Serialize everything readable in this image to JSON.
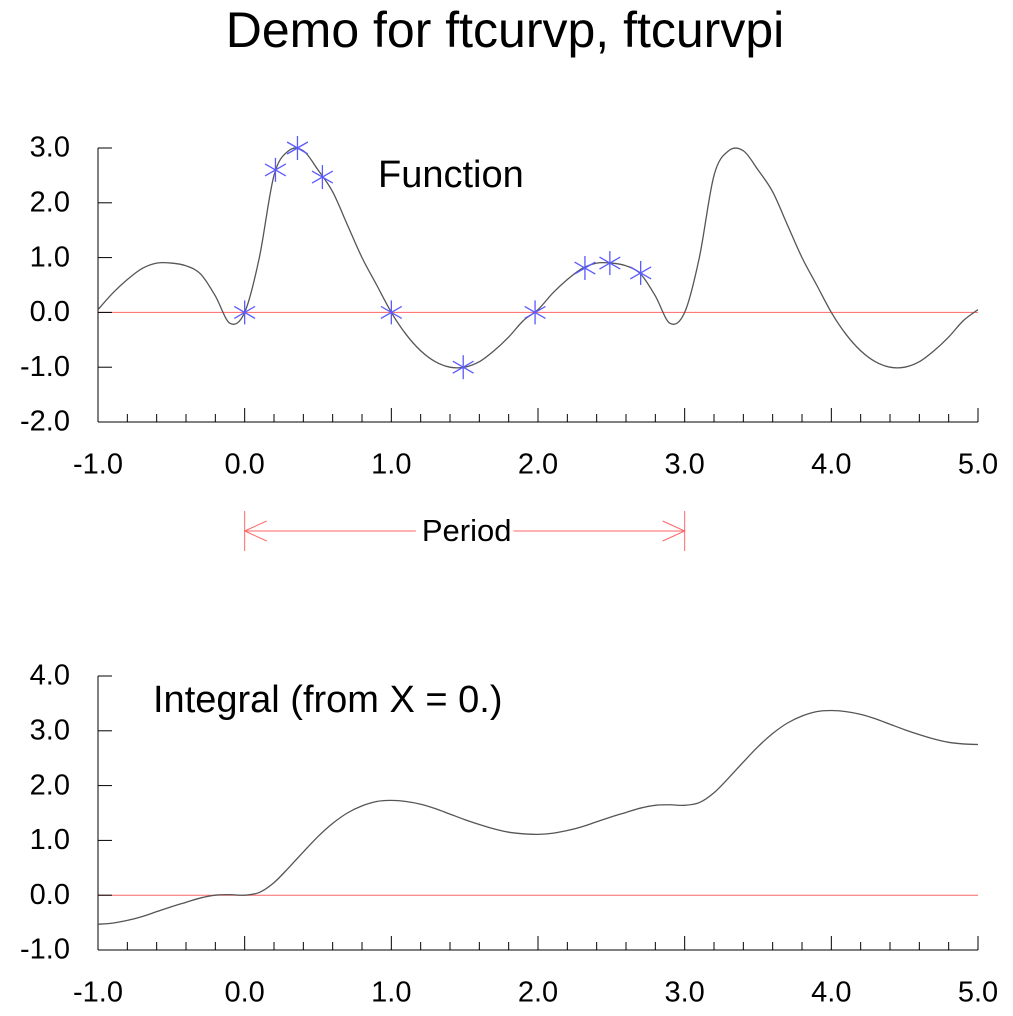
{
  "title": "Demo for ftcurvp, ftcurvpi",
  "chart_data": [
    {
      "type": "line",
      "annotation": "Function",
      "x": [
        -1,
        -0.9,
        -0.8,
        -0.7,
        -0.6,
        -0.5,
        -0.4,
        -0.3,
        -0.2,
        -0.1,
        0,
        0.1,
        0.2,
        0.3,
        0.4,
        0.5,
        0.6,
        0.7,
        0.8,
        0.9,
        1,
        1.1,
        1.2,
        1.3,
        1.4,
        1.5,
        1.6,
        1.7,
        1.8,
        1.9,
        2,
        2.1,
        2.2,
        2.3,
        2.4,
        2.5,
        2.6,
        2.7,
        2.8,
        2.9,
        3,
        3.1,
        3.2,
        3.3,
        3.4,
        3.5,
        3.6,
        3.7,
        3.8,
        3.9,
        4,
        4.1,
        4.2,
        4.3,
        4.4,
        4.5,
        4.6,
        4.7,
        4.8,
        4.9,
        5
      ],
      "series": [
        {
          "color": "#555555",
          "values": [
            0.05,
            0.35,
            0.6,
            0.8,
            0.9,
            0.9,
            0.85,
            0.7,
            0.3,
            -0.2,
            0,
            1.0,
            2.5,
            2.95,
            2.95,
            2.6,
            2.2,
            1.6,
            1.0,
            0.5,
            0,
            -0.4,
            -0.7,
            -0.9,
            -1.0,
            -1.0,
            -0.9,
            -0.7,
            -0.45,
            -0.15,
            0.05,
            0.35,
            0.6,
            0.8,
            0.9,
            0.9,
            0.85,
            0.7,
            0.3,
            -0.2,
            0,
            1.0,
            2.5,
            2.95,
            2.95,
            2.6,
            2.2,
            1.6,
            1.0,
            0.5,
            0,
            -0.4,
            -0.7,
            -0.9,
            -1.0,
            -1.0,
            -0.9,
            -0.7,
            -0.45,
            -0.15,
            0.05
          ]
        }
      ],
      "points": {
        "color": "#5a5aff",
        "marker": "asterisk",
        "x": [
          0,
          0.21,
          0.36,
          0.53,
          1.0,
          1.49,
          1.98,
          2.32,
          2.49,
          2.7
        ],
        "y": [
          0,
          2.6,
          3.0,
          2.47,
          0,
          -1.0,
          0,
          0.81,
          0.9,
          0.72
        ]
      },
      "period_arrow": {
        "label": "Period",
        "from": 0,
        "to": 3,
        "color": "#ff6666"
      },
      "xlim": [
        -1,
        5
      ],
      "ylim": [
        -2,
        3
      ],
      "xticks": [
        {
          "value": -1,
          "label": "-1.0"
        },
        {
          "value": 0,
          "label": "0.0"
        },
        {
          "value": 1,
          "label": "1.0"
        },
        {
          "value": 2,
          "label": "2.0"
        },
        {
          "value": 3,
          "label": "3.0"
        },
        {
          "value": 4,
          "label": "4.0"
        },
        {
          "value": 5,
          "label": "5.0"
        }
      ],
      "xminorticks": [
        -0.8,
        -0.6,
        -0.4,
        -0.2,
        0.2,
        0.4,
        0.6,
        0.8,
        1.2,
        1.4,
        1.6,
        1.8,
        2.2,
        2.4,
        2.6,
        2.8,
        3.2,
        3.4,
        3.6,
        3.8,
        4.2,
        4.4,
        4.6,
        4.8
      ],
      "yticks": [
        {
          "value": -2,
          "label": "-2.0"
        },
        {
          "value": -1,
          "label": "-1.0"
        },
        {
          "value": 0,
          "label": "0.0"
        },
        {
          "value": 1,
          "label": "1.0"
        },
        {
          "value": 2,
          "label": "2.0"
        },
        {
          "value": 3,
          "label": "3.0"
        }
      ],
      "zero_line_color": "#ff6666"
    },
    {
      "type": "line",
      "annotation": "Integral (from X = 0.)",
      "x": [
        -1,
        -0.9,
        -0.8,
        -0.7,
        -0.6,
        -0.5,
        -0.4,
        -0.3,
        -0.2,
        -0.1,
        0,
        0.1,
        0.2,
        0.3,
        0.4,
        0.5,
        0.6,
        0.7,
        0.8,
        0.9,
        1,
        1.1,
        1.2,
        1.3,
        1.4,
        1.5,
        1.6,
        1.7,
        1.8,
        1.9,
        2,
        2.1,
        2.2,
        2.3,
        2.4,
        2.5,
        2.6,
        2.7,
        2.8,
        2.9,
        3,
        3.1,
        3.2,
        3.3,
        3.4,
        3.5,
        3.6,
        3.7,
        3.8,
        3.9,
        4,
        4.1,
        4.2,
        4.3,
        4.4,
        4.5,
        4.6,
        4.7,
        4.8,
        4.9,
        5
      ],
      "series": [
        {
          "color": "#555555",
          "values": [
            -0.53,
            -0.51,
            -0.46,
            -0.39,
            -0.3,
            -0.21,
            -0.13,
            -0.05,
            0.0,
            0.01,
            0,
            0.05,
            0.23,
            0.5,
            0.79,
            1.07,
            1.31,
            1.5,
            1.63,
            1.71,
            1.73,
            1.71,
            1.66,
            1.58,
            1.48,
            1.38,
            1.29,
            1.21,
            1.15,
            1.12,
            1.11,
            1.13,
            1.18,
            1.25,
            1.34,
            1.43,
            1.51,
            1.59,
            1.64,
            1.65,
            1.64,
            1.69,
            1.87,
            2.14,
            2.43,
            2.71,
            2.95,
            3.14,
            3.27,
            3.35,
            3.37,
            3.35,
            3.3,
            3.22,
            3.12,
            3.02,
            2.93,
            2.85,
            2.79,
            2.76,
            2.75
          ]
        }
      ],
      "xlim": [
        -1,
        5
      ],
      "ylim": [
        -1,
        4
      ],
      "xticks": [
        {
          "value": -1,
          "label": "-1.0"
        },
        {
          "value": 0,
          "label": "0.0"
        },
        {
          "value": 1,
          "label": "1.0"
        },
        {
          "value": 2,
          "label": "2.0"
        },
        {
          "value": 3,
          "label": "3.0"
        },
        {
          "value": 4,
          "label": "4.0"
        },
        {
          "value": 5,
          "label": "5.0"
        }
      ],
      "xminorticks": [
        -0.8,
        -0.6,
        -0.4,
        -0.2,
        0.2,
        0.4,
        0.6,
        0.8,
        1.2,
        1.4,
        1.6,
        1.8,
        2.2,
        2.4,
        2.6,
        2.8,
        3.2,
        3.4,
        3.6,
        3.8,
        4.2,
        4.4,
        4.6,
        4.8
      ],
      "yticks": [
        {
          "value": -1,
          "label": "-1.0"
        },
        {
          "value": 0,
          "label": "0.0"
        },
        {
          "value": 1,
          "label": "1.0"
        },
        {
          "value": 2,
          "label": "2.0"
        },
        {
          "value": 3,
          "label": "3.0"
        },
        {
          "value": 4,
          "label": "4.0"
        }
      ],
      "zero_line_color": "#ff6666"
    }
  ]
}
